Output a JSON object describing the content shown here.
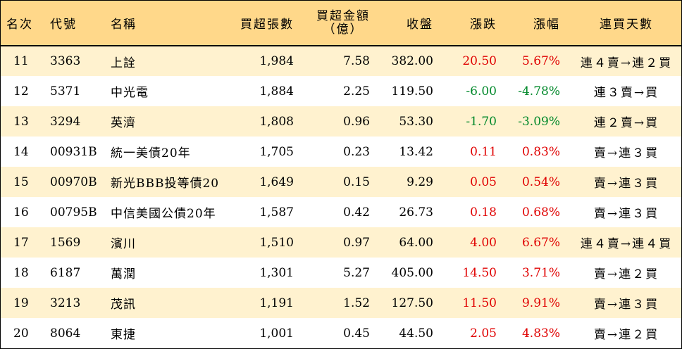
{
  "headers": {
    "rank": "名次",
    "code": "代號",
    "name": "名稱",
    "net_buy_lots": "買超張數",
    "net_buy_amount_line1": "買超金額",
    "net_buy_amount_line2": "（億）",
    "close": "收盤",
    "change": "漲跌",
    "change_pct": "漲幅",
    "consecutive_days": "連買天數"
  },
  "rows": [
    {
      "rank": "11",
      "code": "3363",
      "name": "上詮",
      "lots": "1,984",
      "amount": "7.58",
      "close": "382.00",
      "change": "20.50",
      "pct": "5.67%",
      "trend": "up",
      "days": "連４賣→連２買"
    },
    {
      "rank": "12",
      "code": "5371",
      "name": "中光電",
      "lots": "1,884",
      "amount": "2.25",
      "close": "119.50",
      "change": "-6.00",
      "pct": "-4.78%",
      "trend": "down",
      "days": "連３賣→買"
    },
    {
      "rank": "13",
      "code": "3294",
      "name": "英濟",
      "lots": "1,808",
      "amount": "0.96",
      "close": "53.30",
      "change": "-1.70",
      "pct": "-3.09%",
      "trend": "down",
      "days": "連２賣→買"
    },
    {
      "rank": "14",
      "code": "00931B",
      "name": "統一美債20年",
      "lots": "1,705",
      "amount": "0.23",
      "close": "13.42",
      "change": "0.11",
      "pct": "0.83%",
      "trend": "up",
      "days": "賣→連３買"
    },
    {
      "rank": "15",
      "code": "00970B",
      "name": "新光BBB投等債20",
      "lots": "1,649",
      "amount": "0.15",
      "close": "9.29",
      "change": "0.05",
      "pct": "0.54%",
      "trend": "up",
      "days": "賣→連３買"
    },
    {
      "rank": "16",
      "code": "00795B",
      "name": "中信美國公債20年",
      "lots": "1,587",
      "amount": "0.42",
      "close": "26.73",
      "change": "0.18",
      "pct": "0.68%",
      "trend": "up",
      "days": "賣→連３買"
    },
    {
      "rank": "17",
      "code": "1569",
      "name": "濱川",
      "lots": "1,510",
      "amount": "0.97",
      "close": "64.00",
      "change": "4.00",
      "pct": "6.67%",
      "trend": "up",
      "days": "連４賣→連４買"
    },
    {
      "rank": "18",
      "code": "6187",
      "name": "萬潤",
      "lots": "1,301",
      "amount": "5.27",
      "close": "405.00",
      "change": "14.50",
      "pct": "3.71%",
      "trend": "up",
      "days": "賣→連２買"
    },
    {
      "rank": "19",
      "code": "3213",
      "name": "茂訊",
      "lots": "1,191",
      "amount": "1.52",
      "close": "127.50",
      "change": "11.50",
      "pct": "9.91%",
      "trend": "up",
      "days": "賣→連３買"
    },
    {
      "rank": "20",
      "code": "8064",
      "name": "東捷",
      "lots": "1,001",
      "amount": "0.45",
      "close": "44.50",
      "change": "2.05",
      "pct": "4.83%",
      "trend": "up",
      "days": "賣→連２買"
    }
  ],
  "colors": {
    "header_bg": "#ffd88a",
    "row_alt_bg": "#fff2cf",
    "up": "#e00000",
    "down": "#00882a"
  }
}
